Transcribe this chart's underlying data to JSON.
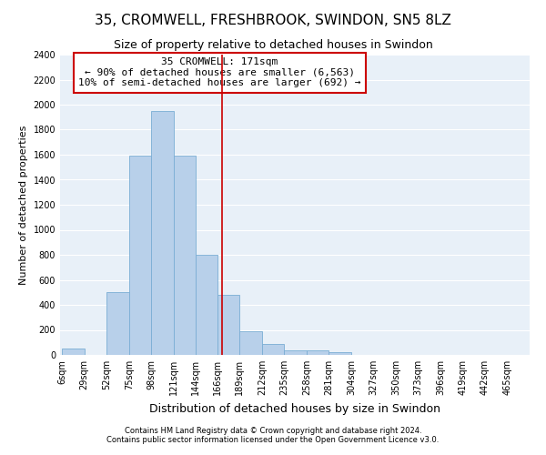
{
  "title": "35, CROMWELL, FRESHBROOK, SWINDON, SN5 8LZ",
  "subtitle": "Size of property relative to detached houses in Swindon",
  "xlabel": "Distribution of detached houses by size in Swindon",
  "ylabel": "Number of detached properties",
  "footnote1": "Contains HM Land Registry data © Crown copyright and database right 2024.",
  "footnote2": "Contains public sector information licensed under the Open Government Licence v3.0.",
  "annotation_line1": "35 CROMWELL: 171sqm",
  "annotation_line2": "← 90% of detached houses are smaller (6,563)",
  "annotation_line3": "10% of semi-detached houses are larger (692) →",
  "bar_color": "#b8d0ea",
  "bar_edge_color": "#7aadd4",
  "vline_color": "#cc0000",
  "vline_x": 171,
  "bins": [
    6,
    29,
    52,
    75,
    98,
    121,
    144,
    166,
    189,
    212,
    235,
    258,
    281,
    304,
    327,
    350,
    373,
    396,
    419,
    442,
    465
  ],
  "counts": [
    50,
    0,
    500,
    1590,
    1950,
    1590,
    800,
    480,
    190,
    90,
    35,
    35,
    20,
    0,
    0,
    0,
    0,
    0,
    0,
    0
  ],
  "ylim": [
    0,
    2400
  ],
  "yticks": [
    0,
    200,
    400,
    600,
    800,
    1000,
    1200,
    1400,
    1600,
    1800,
    2000,
    2200,
    2400
  ],
  "plot_bg_color": "#e8f0f8",
  "title_fontsize": 11,
  "subtitle_fontsize": 9,
  "xlabel_fontsize": 9,
  "ylabel_fontsize": 8,
  "footnote_fontsize": 6,
  "tick_fontsize": 7,
  "annotation_fontsize": 8
}
